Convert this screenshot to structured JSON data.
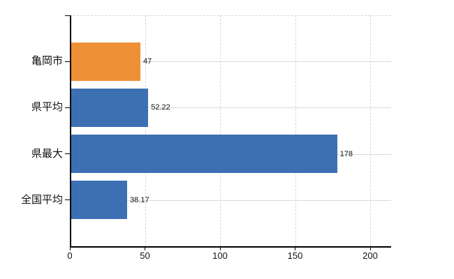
{
  "chart_data": {
    "type": "bar",
    "orientation": "horizontal",
    "title": "",
    "xlabel": "",
    "ylabel": "",
    "categories": [
      "亀岡市",
      "県平均",
      "県最大",
      "全国平均"
    ],
    "values": [
      47,
      52.22,
      178,
      38.17
    ],
    "value_labels": [
      "47",
      "52.22",
      "178",
      "38.17"
    ],
    "bar_colors": [
      "#ee9036",
      "#3d6fb3",
      "#3d6fb3",
      "#3d6fb3"
    ],
    "x_ticks": [
      0,
      50,
      100,
      150,
      200
    ],
    "xlim": [
      0,
      214
    ],
    "grid": "on",
    "legend": "none"
  },
  "colors": {
    "highlight_bar": "#ee9036",
    "default_bar": "#3d6fb3",
    "axis": "#000000",
    "grid_vertical": "#d8d4db",
    "grid_horizontal": "#d5dcd3",
    "text": "#111111",
    "background": "#ffffff"
  }
}
